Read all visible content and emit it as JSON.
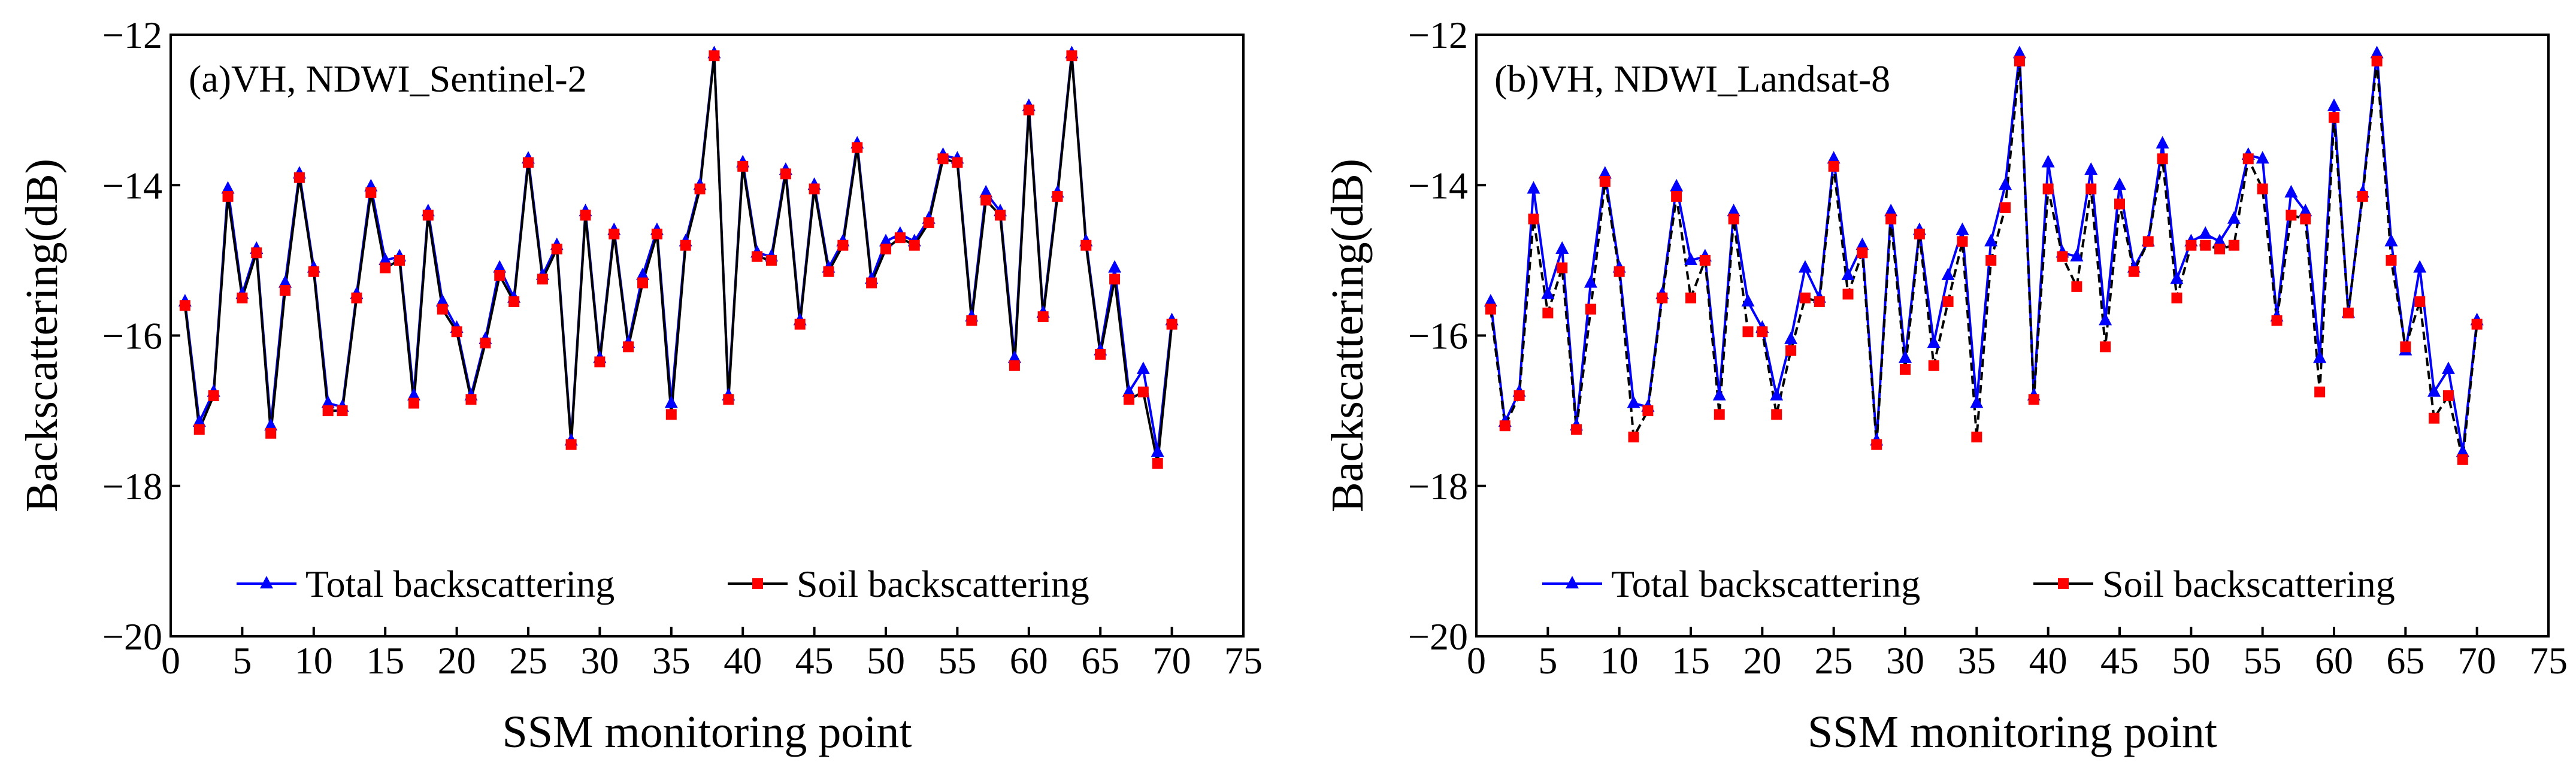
{
  "figure": {
    "colors": {
      "total": "#0000FF",
      "soil_line": "#000000",
      "soil_marker": "#FF0000",
      "axis": "#000000"
    }
  },
  "chart_data": [
    {
      "type": "line",
      "title": "(a)VH, NDWI_Sentinel-2",
      "xlabel": "SSM monitoring point",
      "ylabel": "Backscattering(dB)",
      "xlim": [
        0,
        75
      ],
      "ylim": [
        -20,
        -12
      ],
      "xticks": [
        "0",
        "5",
        "10",
        "15",
        "20",
        "25",
        "30",
        "35",
        "40",
        "45",
        "50",
        "55",
        "60",
        "65",
        "70",
        "75"
      ],
      "yticks": [
        "−20",
        "−18",
        "−16",
        "−14",
        "−12"
      ],
      "legend": {
        "position": "bottom",
        "entries": [
          "Total backscattering",
          "Soil backscattering"
        ]
      },
      "x": [
        1,
        2,
        3,
        4,
        5,
        6,
        7,
        8,
        9,
        10,
        11,
        12,
        13,
        14,
        15,
        16,
        17,
        18,
        19,
        20,
        21,
        22,
        23,
        24,
        25,
        26,
        27,
        28,
        29,
        30,
        31,
        32,
        33,
        34,
        35,
        36,
        37,
        38,
        39,
        40,
        41,
        42,
        43,
        44,
        45,
        46,
        47,
        48,
        49,
        50,
        51,
        52,
        53,
        54,
        55,
        56,
        57,
        58,
        59,
        60,
        61,
        62,
        63,
        64,
        65,
        66,
        67,
        68,
        69,
        70
      ],
      "series": [
        {
          "name": "Total backscattering",
          "marker": "triangle",
          "values": [
            -15.55,
            -17.15,
            -16.75,
            -14.05,
            -15.45,
            -14.85,
            -17.2,
            -15.3,
            -13.85,
            -15.1,
            -16.9,
            -16.95,
            -15.45,
            -14.02,
            -15,
            -14.95,
            -16.8,
            -14.35,
            -15.55,
            -15.9,
            -16.8,
            -16.05,
            -15.1,
            -15.5,
            -13.65,
            -15.2,
            -14.8,
            -17.4,
            -14.35,
            -16.3,
            -14.6,
            -16.1,
            -15.2,
            -14.6,
            -16.9,
            -14.75,
            -14,
            -12.25,
            -16.8,
            -13.7,
            -14.9,
            -14.95,
            -13.8,
            -15.8,
            -14,
            -15.1,
            -14.75,
            -13.45,
            -15.25,
            -14.75,
            -14.65,
            -14.75,
            -14.45,
            -13.6,
            -13.65,
            -15.75,
            -14.1,
            -14.35,
            -16.3,
            -12.95,
            -15.7,
            -14.1,
            -12.25,
            -14.75,
            -16.2,
            -15.1,
            -16.75,
            -16.45,
            -17.55,
            -15.8
          ]
        },
        {
          "name": "Soil backscattering",
          "marker": "square",
          "values": [
            -15.6,
            -17.25,
            -16.8,
            -14.15,
            -15.5,
            -14.9,
            -17.3,
            -15.4,
            -13.9,
            -15.15,
            -17,
            -17,
            -15.5,
            -14.1,
            -15.1,
            -15,
            -16.9,
            -14.4,
            -15.65,
            -15.95,
            -16.85,
            -16.1,
            -15.2,
            -15.55,
            -13.7,
            -15.25,
            -14.85,
            -17.45,
            -14.4,
            -16.35,
            -14.65,
            -16.15,
            -15.3,
            -14.65,
            -17.05,
            -14.8,
            -14.05,
            -12.28,
            -16.85,
            -13.75,
            -14.95,
            -15,
            -13.85,
            -15.85,
            -14.05,
            -15.15,
            -14.8,
            -13.5,
            -15.3,
            -14.85,
            -14.7,
            -14.8,
            -14.5,
            -13.65,
            -13.7,
            -15.8,
            -14.2,
            -14.4,
            -16.4,
            -13,
            -15.75,
            -14.15,
            -12.28,
            -14.8,
            -16.25,
            -15.25,
            -16.85,
            -16.75,
            -17.7,
            -15.85
          ]
        }
      ]
    },
    {
      "type": "line",
      "title": "(b)VH, NDWI_Landsat-8",
      "xlabel": "SSM monitoring point",
      "ylabel": "Backscattering(dB)",
      "xlim": [
        0,
        75
      ],
      "ylim": [
        -20,
        -12
      ],
      "xticks": [
        "0",
        "5",
        "10",
        "15",
        "20",
        "25",
        "30",
        "35",
        "40",
        "45",
        "50",
        "55",
        "60",
        "65",
        "70",
        "75"
      ],
      "yticks": [
        "−20",
        "−18",
        "−16",
        "−14",
        "−12"
      ],
      "legend": {
        "position": "bottom",
        "entries": [
          "Total backscattering",
          "Soil backscattering"
        ]
      },
      "x": [
        1,
        2,
        3,
        4,
        5,
        6,
        7,
        8,
        9,
        10,
        11,
        12,
        13,
        14,
        15,
        16,
        17,
        18,
        19,
        20,
        21,
        22,
        23,
        24,
        25,
        26,
        27,
        28,
        29,
        30,
        31,
        32,
        33,
        34,
        35,
        36,
        37,
        38,
        39,
        40,
        41,
        42,
        43,
        44,
        45,
        46,
        47,
        48,
        49,
        50,
        51,
        52,
        53,
        54,
        55,
        56,
        57,
        58,
        59,
        60,
        61,
        62,
        63,
        64,
        65,
        66,
        67,
        68,
        69,
        70
      ],
      "series": [
        {
          "name": "Total backscattering",
          "marker": "triangle",
          "values": [
            -15.55,
            -17.15,
            -16.75,
            -14.05,
            -15.45,
            -14.85,
            -17.2,
            -15.3,
            -13.85,
            -15.1,
            -16.9,
            -16.95,
            -15.45,
            -14.02,
            -15,
            -14.95,
            -16.8,
            -14.35,
            -15.55,
            -15.9,
            -16.8,
            -16.05,
            -15.1,
            -15.5,
            -13.65,
            -15.2,
            -14.8,
            -17.4,
            -14.35,
            -16.3,
            -14.6,
            -16.1,
            -15.2,
            -14.6,
            -16.9,
            -14.75,
            -14,
            -12.25,
            -16.8,
            -13.7,
            -14.9,
            -14.95,
            -13.8,
            -15.8,
            -14,
            -15.1,
            -14.75,
            -13.45,
            -15.25,
            -14.75,
            -14.65,
            -14.75,
            -14.45,
            -13.6,
            -13.65,
            -15.75,
            -14.1,
            -14.35,
            -16.3,
            -12.95,
            -15.7,
            -14.1,
            -12.25,
            -14.75,
            -16.2,
            -15.1,
            -16.75,
            -16.45,
            -17.55,
            -15.8
          ]
        },
        {
          "name": "Soil backscattering",
          "marker": "square",
          "values": [
            -15.65,
            -17.2,
            -16.8,
            -14.45,
            -15.7,
            -15.1,
            -17.25,
            -15.65,
            -13.95,
            -15.15,
            -17.35,
            -17,
            -15.5,
            -14.15,
            -15.5,
            -15,
            -17.05,
            -14.45,
            -15.95,
            -15.95,
            -17.05,
            -16.2,
            -15.5,
            -15.55,
            -13.75,
            -15.45,
            -14.9,
            -17.45,
            -14.45,
            -16.45,
            -14.65,
            -16.4,
            -15.55,
            -14.75,
            -17.35,
            -15,
            -14.3,
            -12.35,
            -16.85,
            -14.05,
            -14.95,
            -15.35,
            -14.05,
            -16.15,
            -14.25,
            -15.15,
            -14.75,
            -13.65,
            -15.5,
            -14.8,
            -14.8,
            -14.85,
            -14.8,
            -13.65,
            -14.05,
            -15.8,
            -14.4,
            -14.45,
            -16.75,
            -13.1,
            -15.7,
            -14.15,
            -12.35,
            -15,
            -16.15,
            -15.55,
            -17.1,
            -16.8,
            -17.65,
            -15.85
          ]
        }
      ]
    }
  ]
}
